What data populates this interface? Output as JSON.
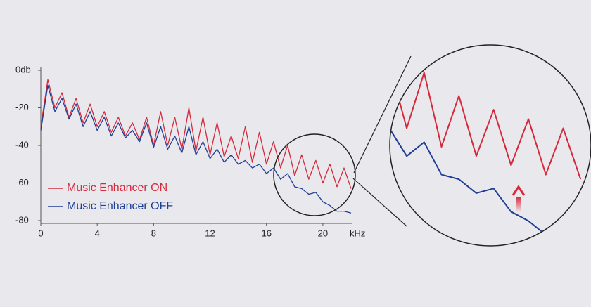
{
  "chart_data": {
    "type": "line",
    "x": [
      0,
      0.5,
      1,
      1.5,
      2,
      2.5,
      3,
      3.5,
      4,
      4.5,
      5,
      5.5,
      6,
      6.5,
      7,
      7.5,
      8,
      8.5,
      9,
      9.5,
      10,
      10.5,
      11,
      11.5,
      12,
      12.5,
      13,
      13.5,
      14,
      14.5,
      15,
      15.5,
      16,
      16.5,
      17,
      17.5,
      18,
      18.5,
      19,
      19.5,
      20,
      20.5,
      21,
      21.5,
      22
    ],
    "series": [
      {
        "name": "Music Enhancer ON",
        "color": "#d42a3c",
        "values": [
          -30,
          -5,
          -20,
          -12,
          -25,
          -15,
          -28,
          -18,
          -30,
          -22,
          -33,
          -25,
          -35,
          -28,
          -37,
          -25,
          -40,
          -22,
          -40,
          -25,
          -42,
          -20,
          -43,
          -25,
          -45,
          -28,
          -46,
          -35,
          -47,
          -30,
          -49,
          -33,
          -50,
          -38,
          -52,
          -40,
          -56,
          -45,
          -58,
          -48,
          -60,
          -50,
          -62,
          -52,
          -63
        ]
      },
      {
        "name": "Music Enhancer OFF",
        "color": "#1f3f94",
        "values": [
          -32,
          -8,
          -22,
          -15,
          -26,
          -18,
          -30,
          -22,
          -32,
          -25,
          -35,
          -28,
          -36,
          -32,
          -38,
          -28,
          -41,
          -30,
          -42,
          -35,
          -44,
          -30,
          -45,
          -38,
          -47,
          -42,
          -49,
          -45,
          -50,
          -48,
          -52,
          -50,
          -55,
          -52,
          -58,
          -55,
          -62,
          -63,
          -66,
          -65,
          -70,
          -72,
          -75,
          -75,
          -76
        ]
      }
    ],
    "x_label": "kHz",
    "xlim": [
      0,
      22
    ],
    "xticks": [
      0,
      4,
      8,
      12,
      16,
      20
    ],
    "ylim": [
      -80,
      0
    ],
    "yticks": [
      {
        "value": 0,
        "label": "0db"
      },
      -20,
      -40,
      -60,
      -80
    ]
  }
}
